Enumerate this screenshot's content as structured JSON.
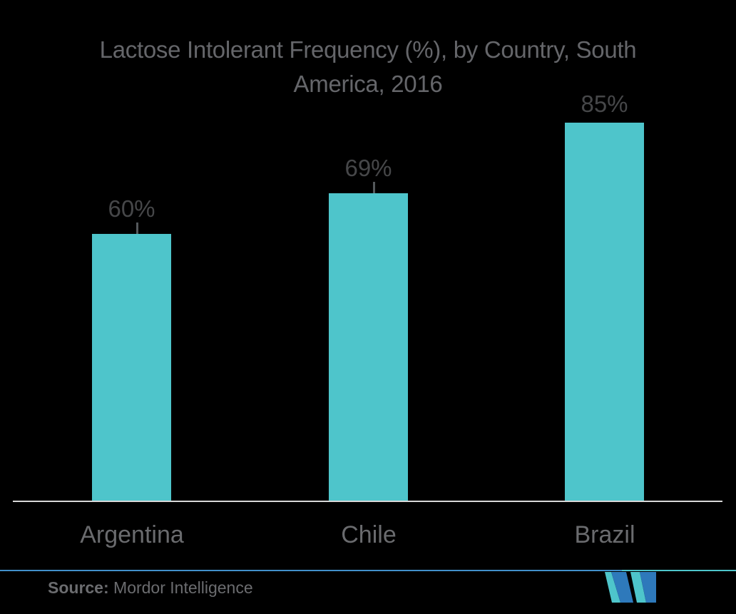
{
  "chart_data": {
    "type": "bar",
    "title": "Lactose Intolerant Frequency (%), by Country, South America, 2016",
    "title_lines": [
      "Lactose Intolerant Frequency (%), by Country, South",
      "America, 2016"
    ],
    "categories": [
      "Argentina",
      "Chile",
      "Brazil"
    ],
    "values": [
      60,
      69,
      85
    ],
    "value_labels": [
      "60%",
      "69%",
      "85%"
    ],
    "unit": "%",
    "ylim": [
      0,
      100
    ],
    "grid": false,
    "legend": "none",
    "leader_lines": [
      true,
      true,
      false
    ],
    "orientation": "vertical"
  },
  "footer": {
    "source_label": "Source:",
    "source_value": "Mordor Intelligence",
    "logo": "mordor-intelligence-logo"
  },
  "colors": {
    "background": "#000000",
    "bar": "#4EC5CB",
    "title_text": "#65666A",
    "value_label_text": "#464749",
    "category_text": "#6A6B6E",
    "axis_line": "#D8D8D8",
    "leader_line": "#54585B",
    "divider_blue": "#4190CA",
    "divider_teal": "#4EC5CB",
    "logo_blue": "#2E79BB",
    "logo_teal": "#4EC5CB",
    "source_text": "#6B6C6F"
  }
}
